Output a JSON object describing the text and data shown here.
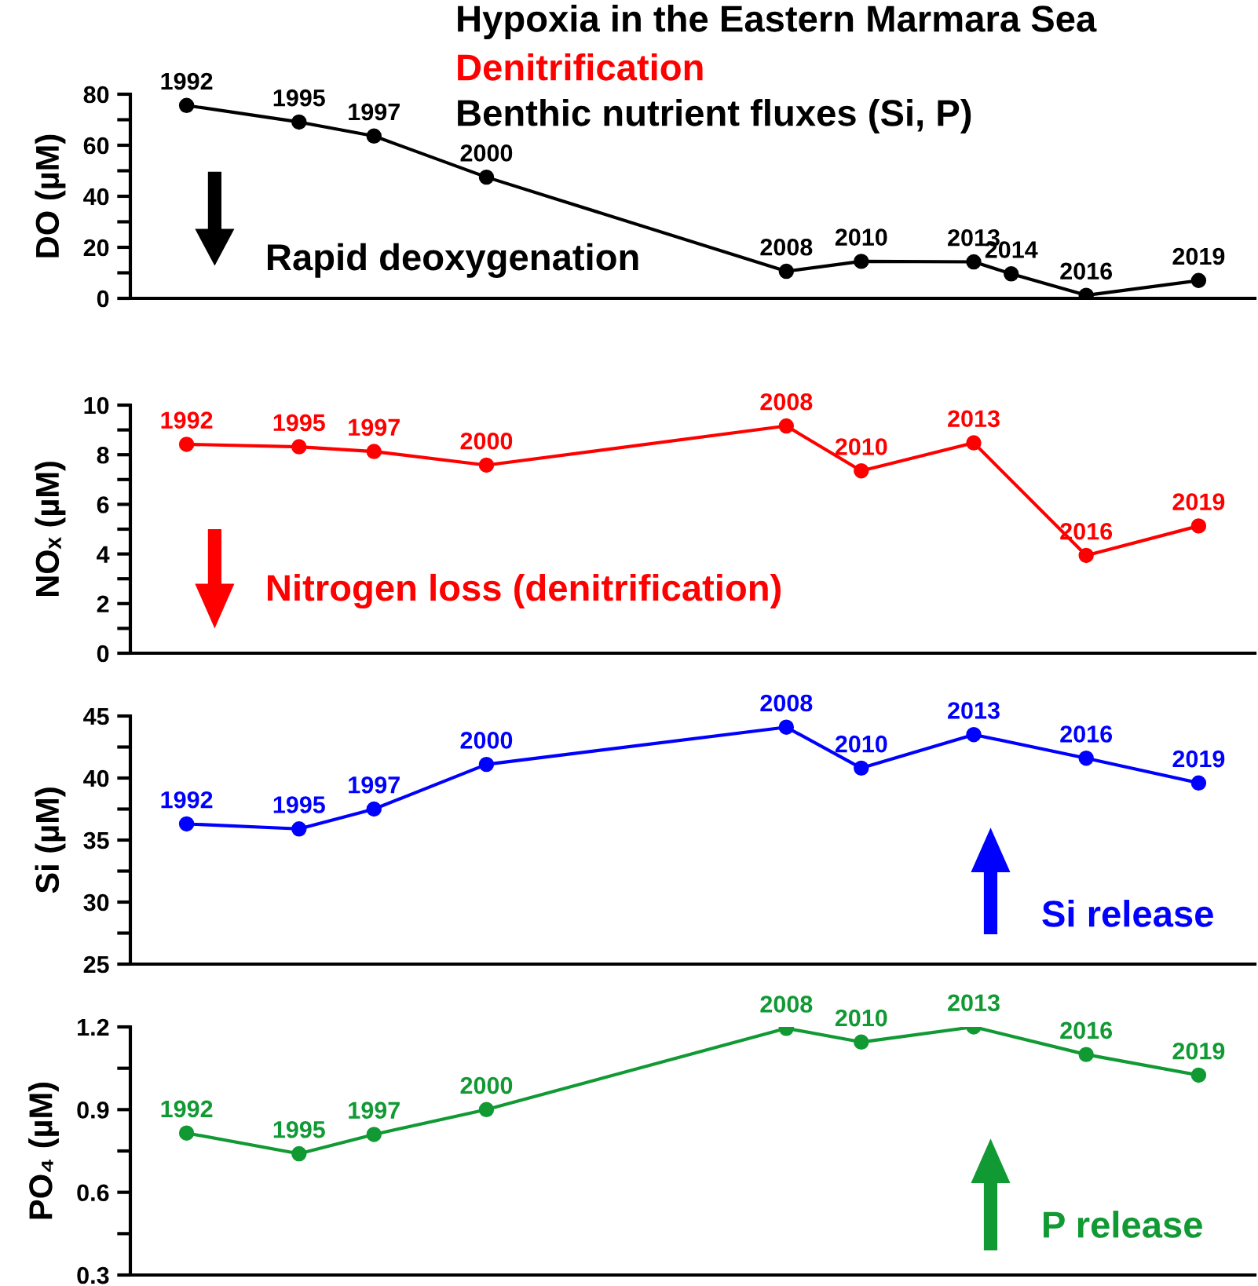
{
  "chart_data": [
    {
      "type": "line",
      "title": "Hypoxia in the Eastern Marmara Sea",
      "subtitle": "Denitrification",
      "ylabel": "DO (µM)",
      "categories": [
        null,
        null,
        null,
        null,
        null,
        null,
        null,
        null,
        null,
        null,
        null,
        null,
        null,
        null,
        null,
        null,
        null,
        null,
        null,
        null,
        null,
        null,
        null,
        null,
        null,
        null,
        null,
        null,
        null,
        null
      ],
      "tick_labels": "y",
      "ylim": [
        0,
        80
      ],
      "yticks": [
        0,
        {
          "value": 10,
          "label": null
        },
        20,
        {
          "value": 30,
          "label": null
        },
        40,
        {
          "value": 50,
          "label": null
        },
        60,
        {
          "value": 70,
          "label": null
        },
        80
      ],
      "marker": "circle",
      "line_style": "solid",
      "series": [
        {
          "color": "#000000",
          "values": [
            null,
            75.6,
            null,
            null,
            69.1,
            null,
            63.6,
            null,
            null,
            47.5,
            null,
            null,
            null,
            null,
            null,
            null,
            null,
            10.6,
            null,
            14.5,
            null,
            null,
            14.3,
            9.6,
            null,
            1.2,
            null,
            null,
            7.0,
            null
          ]
        }
      ],
      "annotations": [
        "Benthic nutrient fluxes (Si, P)",
        "Rapid deoxygenation",
        {
          "text": "1992",
          "y": 75.6
        },
        {
          "text": "1995",
          "y": 69.1
        },
        {
          "text": "1997",
          "y": 63.6
        },
        {
          "text": "2000",
          "y": 47.5
        },
        {
          "text": "2008",
          "y": 10.6
        },
        {
          "text": "2010",
          "y": 14.5
        },
        {
          "text": "2013",
          "y": 14.3
        },
        {
          "text": "2014",
          "y": 9.6
        },
        {
          "text": "2016",
          "y": 1.2
        },
        {
          "text": "2019",
          "y": 7.0
        }
      ]
    },
    {
      "type": "line",
      "ylabel": "NOₓ (µM)",
      "categories": [
        null,
        null,
        null,
        null,
        null,
        null,
        null,
        null,
        null,
        null,
        null,
        null,
        null,
        null,
        null,
        null,
        null,
        null,
        null,
        null,
        null,
        null,
        null,
        null,
        null,
        null,
        null,
        null,
        null,
        null
      ],
      "tick_labels": "y",
      "ylim": [
        0,
        10
      ],
      "yticks": [
        0,
        {
          "value": 1,
          "label": null
        },
        2,
        {
          "value": 3,
          "label": null
        },
        4,
        {
          "value": 5,
          "label": null
        },
        6,
        {
          "value": 7,
          "label": null
        },
        8,
        {
          "value": 9,
          "label": null
        },
        10
      ],
      "marker": "circle",
      "line_style": "solid",
      "series": [
        {
          "color": "#ff0000",
          "values": [
            null,
            8.42,
            null,
            null,
            8.32,
            null,
            8.13,
            null,
            null,
            7.58,
            null,
            null,
            null,
            null,
            null,
            null,
            null,
            9.16,
            null,
            7.35,
            null,
            null,
            8.48,
            null,
            null,
            3.94,
            null,
            null,
            5.13,
            null
          ]
        }
      ],
      "annotations": [
        "Nitrogen loss (denitrification)",
        {
          "text": "1992",
          "y": 8.42
        },
        {
          "text": "1995",
          "y": 8.32
        },
        {
          "text": "1997",
          "y": 8.13
        },
        {
          "text": "2000",
          "y": 7.58
        },
        {
          "text": "2008",
          "y": 9.16
        },
        {
          "text": "2010",
          "y": 7.35
        },
        {
          "text": "2013",
          "y": 8.48
        },
        {
          "text": "2016",
          "y": 3.94
        },
        {
          "text": "2019",
          "y": 5.13
        }
      ]
    },
    {
      "type": "line",
      "ylabel": "Si (µM)",
      "categories": [
        null,
        null,
        null,
        null,
        null,
        null,
        null,
        null,
        null,
        null,
        null,
        null,
        null,
        null,
        null,
        null,
        null,
        null,
        null,
        null,
        null,
        null,
        null,
        null,
        null,
        null,
        null,
        null,
        null,
        null
      ],
      "tick_labels": "y",
      "ylim": [
        25,
        45
      ],
      "yticks": [
        25,
        {
          "value": 27.5,
          "label": null
        },
        30,
        {
          "value": 32.5,
          "label": null
        },
        35,
        {
          "value": 37.5,
          "label": null
        },
        40,
        {
          "value": 42.5,
          "label": null
        },
        45
      ],
      "marker": "circle",
      "line_style": "solid",
      "series": [
        {
          "color": "#0000ff",
          "values": [
            null,
            36.3,
            null,
            null,
            35.9,
            null,
            37.5,
            null,
            null,
            41.1,
            null,
            null,
            null,
            null,
            null,
            null,
            null,
            44.1,
            null,
            40.8,
            null,
            null,
            43.5,
            null,
            null,
            41.6,
            null,
            null,
            39.6,
            null
          ]
        }
      ],
      "annotations": [
        "Si release",
        {
          "text": "1992",
          "y": 36.3
        },
        {
          "text": "1995",
          "y": 35.9
        },
        {
          "text": "1997",
          "y": 37.5
        },
        {
          "text": "2000",
          "y": 41.1
        },
        {
          "text": "2008",
          "y": 44.1
        },
        {
          "text": "2010",
          "y": 40.8
        },
        {
          "text": "2013",
          "y": 43.5
        },
        {
          "text": "2016",
          "y": 41.6
        },
        {
          "text": "2019",
          "y": 39.6
        }
      ]
    },
    {
      "type": "line",
      "ylabel": "PO₄ (µM)",
      "categories": [
        null,
        null,
        null,
        null,
        null,
        null,
        null,
        null,
        null,
        null,
        null,
        null,
        null,
        null,
        null,
        null,
        null,
        null,
        null,
        null,
        null,
        null,
        null,
        null,
        null,
        null,
        null,
        null,
        null,
        null
      ],
      "tick_labels": "y",
      "ylim": [
        0.3,
        1.2
      ],
      "yticks": [
        0.3,
        {
          "value": 0.45,
          "label": null
        },
        0.6,
        {
          "value": 0.75,
          "label": null
        },
        0.9,
        {
          "value": 1.05,
          "label": null
        },
        1.2
      ],
      "marker": "circle",
      "line_style": "solid",
      "series": [
        {
          "color": "#119933",
          "values": [
            null,
            0.815,
            null,
            null,
            0.74,
            null,
            0.81,
            null,
            null,
            0.9,
            null,
            null,
            null,
            null,
            null,
            null,
            null,
            1.195,
            null,
            1.145,
            null,
            null,
            1.2,
            null,
            null,
            1.1,
            null,
            null,
            1.025,
            null
          ]
        }
      ],
      "annotations": [
        "P release",
        {
          "text": "1992",
          "y": 0.815
        },
        {
          "text": "1995",
          "y": 0.74
        },
        {
          "text": "1997",
          "y": 0.81
        },
        {
          "text": "2000",
          "y": 0.9
        },
        {
          "text": "2008",
          "y": 1.195
        },
        {
          "text": "2010",
          "y": 1.145
        },
        {
          "text": "2013",
          "y": 1.2
        },
        {
          "text": "2016",
          "y": 1.1
        },
        {
          "text": "2019",
          "y": 1.025
        }
      ]
    }
  ]
}
